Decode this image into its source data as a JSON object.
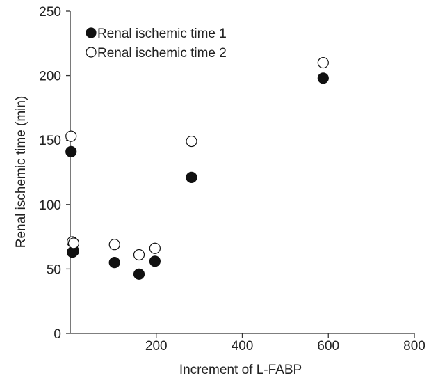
{
  "chart_data": {
    "type": "scatter",
    "title": "",
    "xlabel": "Increment of L-FABP",
    "ylabel": "Renal ischemic time (min)",
    "xlim": [
      0,
      800
    ],
    "ylim": [
      0,
      250
    ],
    "x_ticks": [
      200,
      400,
      600,
      800
    ],
    "x_tick_labels": [
      "200",
      "400",
      "600",
      "800"
    ],
    "y_ticks": [
      0,
      50,
      100,
      150,
      200,
      250
    ],
    "y_tick_labels": [
      "0",
      "50",
      "100",
      "150",
      "200",
      "250"
    ],
    "grid": false,
    "legend_position": "top-left",
    "series": [
      {
        "name": "Renal ischemic time 1",
        "marker": "filled-circle",
        "color": "#111111",
        "points": [
          {
            "x": 2,
            "y": 141
          },
          {
            "x": 5,
            "y": 63
          },
          {
            "x": 8,
            "y": 64
          },
          {
            "x": 103,
            "y": 55
          },
          {
            "x": 160,
            "y": 46
          },
          {
            "x": 197,
            "y": 56
          },
          {
            "x": 282,
            "y": 121
          },
          {
            "x": 588,
            "y": 198
          }
        ]
      },
      {
        "name": "Renal ischemic time 2",
        "marker": "open-circle",
        "color": "#111111",
        "points": [
          {
            "x": 2,
            "y": 153
          },
          {
            "x": 5,
            "y": 71
          },
          {
            "x": 8,
            "y": 70
          },
          {
            "x": 103,
            "y": 69
          },
          {
            "x": 160,
            "y": 61
          },
          {
            "x": 197,
            "y": 66
          },
          {
            "x": 282,
            "y": 149
          },
          {
            "x": 588,
            "y": 210
          }
        ]
      }
    ]
  }
}
